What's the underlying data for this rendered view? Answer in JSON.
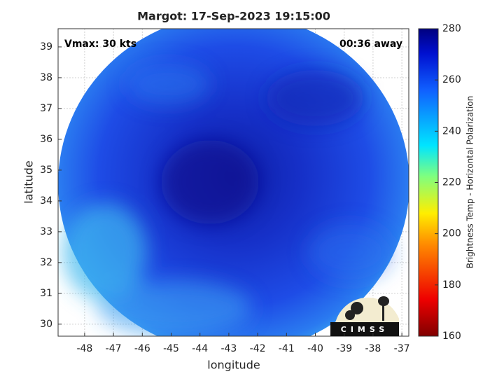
{
  "chart_data": {
    "type": "image-map",
    "title": "Margot: 17-Sep-2023 19:15:00",
    "annotations": [
      "Vmax: 30 kts",
      "00:36 away"
    ],
    "xlabel": "longitude",
    "ylabel": "latitude",
    "xlim": [
      -48.92,
      -36.76
    ],
    "xticks": [
      -48,
      -47,
      -46,
      -45,
      -44,
      -43,
      -42,
      -41,
      -40,
      -39,
      -38,
      -37
    ],
    "ylim": [
      29.61,
      39.59
    ],
    "yticks": [
      30,
      31,
      32,
      33,
      34,
      35,
      36,
      37,
      38,
      39
    ],
    "grid": true,
    "colorbar": {
      "label": "Brightness Temp - Horizontal Polarization",
      "lim": [
        160,
        280
      ],
      "ticks": [
        160,
        180,
        200,
        220,
        240,
        260,
        280
      ]
    },
    "logo": "CIMSS"
  }
}
